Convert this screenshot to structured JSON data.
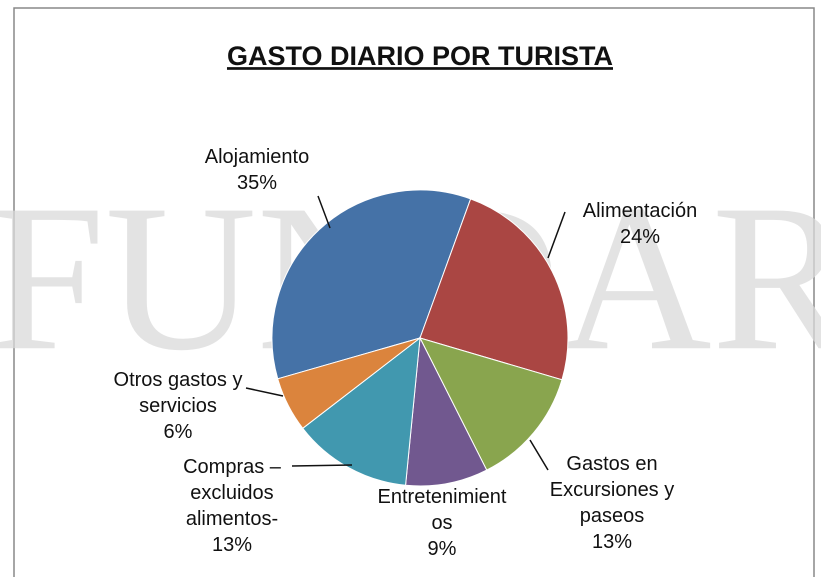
{
  "chart_data": {
    "type": "pie",
    "title": "GASTO DIARIO POR TURISTA",
    "watermark": "FUNDAR",
    "categories": [
      "Alojamiento",
      "Alimentación",
      "Gastos en Excursiones y paseos",
      "Entretenimientos",
      "Compras – excluidos alimentos-",
      "Otros gastos y servicios"
    ],
    "values": [
      35,
      24,
      13,
      9,
      13,
      6
    ],
    "value_labels": [
      "35%",
      "24%",
      "13%",
      "9%",
      "13%",
      "6%"
    ],
    "colors": [
      "#4572a7",
      "#aa4643",
      "#89a54e",
      "#71588f",
      "#4198af",
      "#db843d"
    ]
  }
}
